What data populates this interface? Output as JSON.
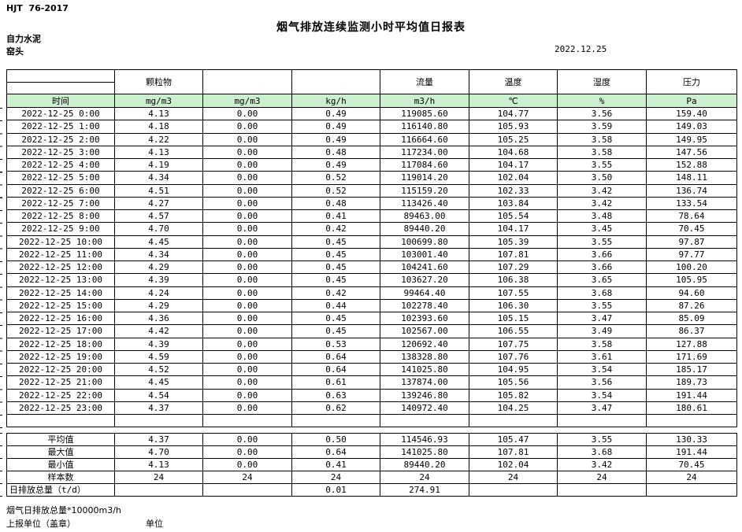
{
  "page": {
    "doc_code": "HJT  76-2017",
    "title": "烟气排放连续监测小时平均值日报表",
    "company": "自力水泥",
    "station": "窑头",
    "date": "2022.12.25"
  },
  "colors": {
    "header_green": "#ccefcf"
  },
  "table": {
    "group_headers": [
      "",
      "颗粒物",
      "",
      "",
      "流量",
      "温度",
      "湿度",
      "压力"
    ],
    "unit_row": [
      "时间",
      "mg/m3",
      "mg/m3",
      "kg/h",
      "m3/h",
      "℃",
      "%",
      "Pa"
    ],
    "rows": [
      [
        "2022-12-25 0:00",
        "4.13",
        "0.00",
        "0.49",
        "119085.60",
        "104.77",
        "3.56",
        "159.40"
      ],
      [
        "2022-12-25 1:00",
        "4.18",
        "0.00",
        "0.49",
        "116140.80",
        "105.93",
        "3.59",
        "149.03"
      ],
      [
        "2022-12-25 2:00",
        "4.22",
        "0.00",
        "0.49",
        "116664.60",
        "105.25",
        "3.58",
        "149.95"
      ],
      [
        "2022-12-25 3:00",
        "4.13",
        "0.00",
        "0.48",
        "117234.00",
        "104.68",
        "3.58",
        "147.56"
      ],
      [
        "2022-12-25 4:00",
        "4.19",
        "0.00",
        "0.49",
        "117084.60",
        "104.17",
        "3.55",
        "152.88"
      ],
      [
        "2022-12-25 5:00",
        "4.34",
        "0.00",
        "0.52",
        "119014.20",
        "102.04",
        "3.50",
        "148.11"
      ],
      [
        "2022-12-25 6:00",
        "4.51",
        "0.00",
        "0.52",
        "115159.20",
        "102.33",
        "3.42",
        "136.74"
      ],
      [
        "2022-12-25 7:00",
        "4.27",
        "0.00",
        "0.48",
        "113426.40",
        "103.84",
        "3.42",
        "133.54"
      ],
      [
        "2022-12-25 8:00",
        "4.57",
        "0.00",
        "0.41",
        "89463.00",
        "105.54",
        "3.48",
        "78.64"
      ],
      [
        "2022-12-25 9:00",
        "4.70",
        "0.00",
        "0.42",
        "89440.20",
        "104.17",
        "3.45",
        "70.45"
      ],
      [
        "2022-12-25 10:00",
        "4.45",
        "0.00",
        "0.45",
        "100699.80",
        "105.39",
        "3.55",
        "97.87"
      ],
      [
        "2022-12-25 11:00",
        "4.34",
        "0.00",
        "0.45",
        "103001.40",
        "107.81",
        "3.66",
        "97.77"
      ],
      [
        "2022-12-25 12:00",
        "4.29",
        "0.00",
        "0.45",
        "104241.60",
        "107.29",
        "3.66",
        "100.20"
      ],
      [
        "2022-12-25 13:00",
        "4.39",
        "0.00",
        "0.45",
        "103627.20",
        "106.38",
        "3.65",
        "105.95"
      ],
      [
        "2022-12-25 14:00",
        "4.24",
        "0.00",
        "0.42",
        "99464.40",
        "107.55",
        "3.68",
        "94.60"
      ],
      [
        "2022-12-25 15:00",
        "4.29",
        "0.00",
        "0.44",
        "102278.40",
        "106.30",
        "3.55",
        "87.26"
      ],
      [
        "2022-12-25 16:00",
        "4.36",
        "0.00",
        "0.45",
        "102393.60",
        "105.15",
        "3.47",
        "85.09"
      ],
      [
        "2022-12-25 17:00",
        "4.42",
        "0.00",
        "0.45",
        "102567.00",
        "106.55",
        "3.49",
        "86.37"
      ],
      [
        "2022-12-25 18:00",
        "4.39",
        "0.00",
        "0.53",
        "120692.40",
        "107.75",
        "3.58",
        "127.88"
      ],
      [
        "2022-12-25 19:00",
        "4.59",
        "0.00",
        "0.64",
        "138328.80",
        "107.76",
        "3.61",
        "171.69"
      ],
      [
        "2022-12-25 20:00",
        "4.52",
        "0.00",
        "0.64",
        "141025.80",
        "104.95",
        "3.54",
        "185.17"
      ],
      [
        "2022-12-25 21:00",
        "4.45",
        "0.00",
        "0.61",
        "137874.00",
        "105.56",
        "3.56",
        "189.73"
      ],
      [
        "2022-12-25 22:00",
        "4.54",
        "0.00",
        "0.63",
        "139246.80",
        "105.82",
        "3.54",
        "191.44"
      ],
      [
        "2022-12-25 23:00",
        "4.37",
        "0.00",
        "0.62",
        "140972.40",
        "104.25",
        "3.47",
        "180.61"
      ]
    ],
    "summary_rows": [
      [
        "平均值",
        "4.37",
        "0.00",
        "0.50",
        "114546.93",
        "105.47",
        "3.55",
        "130.33"
      ],
      [
        "最大值",
        "4.70",
        "0.00",
        "0.64",
        "141025.80",
        "107.81",
        "3.68",
        "191.44"
      ],
      [
        "最小值",
        "4.13",
        "0.00",
        "0.41",
        "89440.20",
        "102.04",
        "3.42",
        "70.45"
      ],
      [
        "样本数",
        "24",
        "24",
        "24",
        "24",
        "24",
        "24",
        "24"
      ],
      [
        "日排放总量（t/d）",
        "",
        "",
        "0.01",
        "274.91",
        "",
        "",
        ""
      ]
    ],
    "summary_label_align": [
      "center",
      "center",
      "center",
      "center",
      "left"
    ]
  },
  "footer": {
    "note_total": "烟气日排放总量*10000m3/h",
    "report_unit": "上报单位（盖章）",
    "unit_label": "单位"
  }
}
